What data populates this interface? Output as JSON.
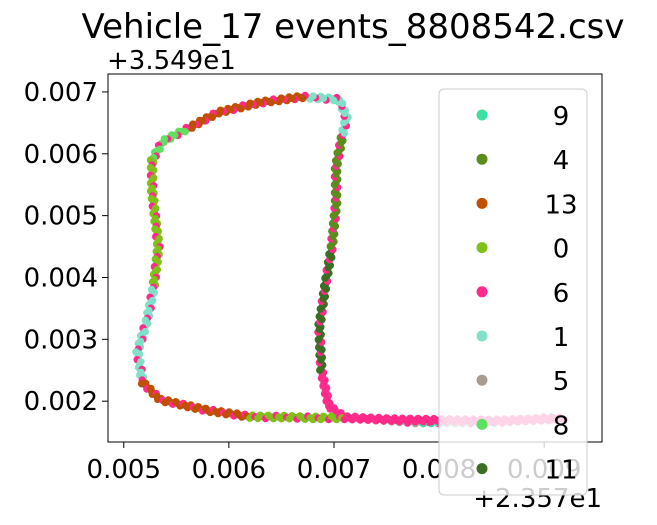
{
  "chart_data": {
    "type": "scatter",
    "title": "Vehicle_17 events_8808542.csv",
    "xlabel": "",
    "ylabel": "",
    "x_offset_label": "+2.357e1",
    "y_offset_label": "+3.549e1",
    "xlim": [
      0.00485,
      0.00955
    ],
    "ylim": [
      0.00134,
      0.00729
    ],
    "x_ticks": [
      0.005,
      0.006,
      0.007,
      0.008,
      0.009
    ],
    "x_tick_labels": [
      "0.005",
      "0.006",
      "0.007",
      "0.008",
      "0.009"
    ],
    "y_ticks": [
      0.002,
      0.003,
      0.004,
      0.005,
      0.006,
      0.007
    ],
    "y_tick_labels": [
      "0.002",
      "0.003",
      "0.004",
      "0.005",
      "0.006",
      "0.007"
    ],
    "legend_position": "upper right",
    "series": [
      {
        "name": "9",
        "color": "#3ee0a0"
      },
      {
        "name": "4",
        "color": "#5c8c1e"
      },
      {
        "name": "13",
        "color": "#c05000"
      },
      {
        "name": "0",
        "color": "#80c018"
      },
      {
        "name": "6",
        "color": "#ff2a8a"
      },
      {
        "name": "1",
        "color": "#80e0c8"
      },
      {
        "name": "5",
        "color": "#a89c90"
      },
      {
        "name": "8",
        "color": "#60e060"
      },
      {
        "name": "11",
        "color": "#3a6e22"
      }
    ],
    "route_waypoints": [
      [
        0.00912,
        0.00173
      ],
      [
        0.0085,
        0.00166
      ],
      [
        0.0078,
        0.00166
      ],
      [
        0.0074,
        0.00171
      ],
      [
        0.0071,
        0.00174
      ],
      [
        0.00695,
        0.00192
      ],
      [
        0.00688,
        0.0025
      ],
      [
        0.00686,
        0.0032
      ],
      [
        0.00692,
        0.0039
      ],
      [
        0.00698,
        0.0045
      ],
      [
        0.00702,
        0.0052
      ],
      [
        0.00702,
        0.0058
      ],
      [
        0.00708,
        0.0063
      ],
      [
        0.00712,
        0.00658
      ],
      [
        0.00705,
        0.00688
      ],
      [
        0.0067,
        0.00692
      ],
      [
        0.0063,
        0.00683
      ],
      [
        0.0059,
        0.00667
      ],
      [
        0.0056,
        0.0064
      ],
      [
        0.00537,
        0.0062
      ],
      [
        0.00527,
        0.0059
      ],
      [
        0.00527,
        0.0054
      ],
      [
        0.00533,
        0.0045
      ],
      [
        0.00528,
        0.0038
      ],
      [
        0.00522,
        0.0033
      ],
      [
        0.00513,
        0.0028
      ],
      [
        0.00518,
        0.0023
      ],
      [
        0.00535,
        0.00202
      ],
      [
        0.0058,
        0.00185
      ],
      [
        0.0062,
        0.00175
      ],
      [
        0.0066,
        0.00174
      ],
      [
        0.0068,
        0.00173
      ],
      [
        0.0071,
        0.00173
      ],
      [
        0.0076,
        0.0017
      ],
      [
        0.0085,
        0.00168
      ],
      [
        0.00922,
        0.00172
      ]
    ],
    "segment_series": [
      {
        "from": 0,
        "to": 2,
        "series": "9"
      },
      {
        "from": 2,
        "to": 4,
        "series": "5"
      },
      {
        "from": 4,
        "to": 6,
        "series": "6"
      },
      {
        "from": 6,
        "to": 9,
        "series": "11"
      },
      {
        "from": 9,
        "to": 12,
        "series": "4"
      },
      {
        "from": 12,
        "to": 15,
        "series": "1"
      },
      {
        "from": 15,
        "to": 18,
        "series": "13"
      },
      {
        "from": 18,
        "to": 20,
        "series": "8"
      },
      {
        "from": 20,
        "to": 23,
        "series": "0"
      },
      {
        "from": 23,
        "to": 26,
        "series": "1"
      },
      {
        "from": 26,
        "to": 29,
        "series": "13"
      },
      {
        "from": 29,
        "to": 32,
        "series": "0"
      },
      {
        "from": 32,
        "to": 35,
        "series": "6"
      }
    ]
  }
}
